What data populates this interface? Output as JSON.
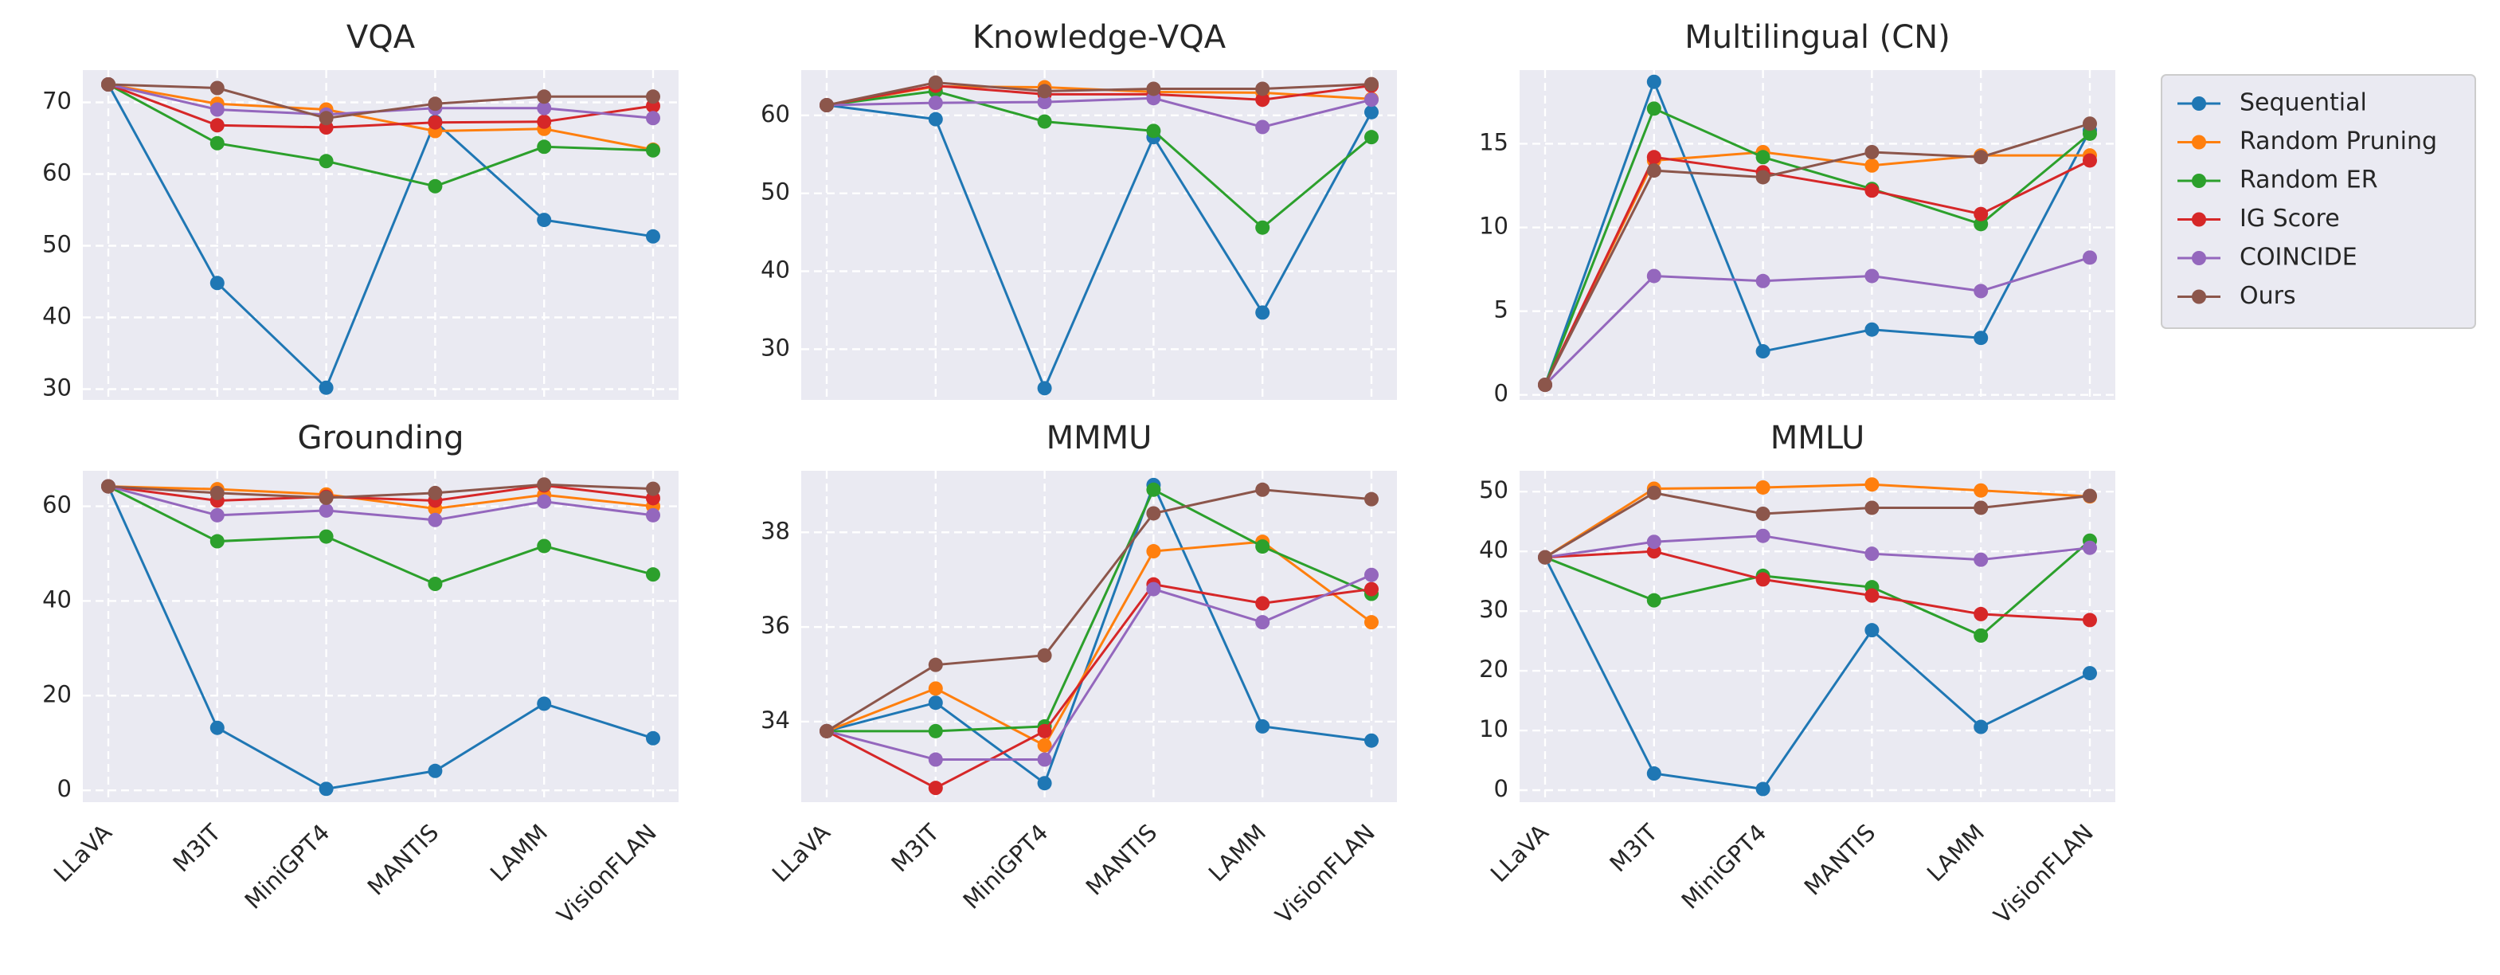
{
  "chart_data": [
    {
      "type": "line",
      "title": "VQA",
      "categories": [
        "LLaVA",
        "M3IT",
        "MiniGPT4",
        "MANTIS",
        "LAMM",
        "VisionFLAN"
      ],
      "ylim": [
        28.5,
        74.5
      ],
      "yticks": [
        30,
        40,
        50,
        60,
        70
      ],
      "series": [
        {
          "name": "Sequential",
          "values": [
            72.5,
            44.8,
            30.2,
            67.3,
            53.6,
            51.3
          ]
        },
        {
          "name": "Random Pruning",
          "values": [
            72.5,
            69.8,
            69.0,
            66.0,
            66.3,
            63.4
          ]
        },
        {
          "name": "Random ER",
          "values": [
            72.5,
            64.3,
            61.8,
            58.3,
            63.8,
            63.3
          ]
        },
        {
          "name": "IG Score",
          "values": [
            72.5,
            66.8,
            66.5,
            67.2,
            67.3,
            69.5
          ]
        },
        {
          "name": "COINCIDE",
          "values": [
            72.5,
            69.0,
            68.3,
            69.2,
            69.2,
            67.8
          ]
        },
        {
          "name": "Ours",
          "values": [
            72.5,
            72.0,
            67.8,
            69.8,
            70.8,
            70.8
          ]
        }
      ]
    },
    {
      "type": "line",
      "title": "Knowledge-VQA",
      "categories": [
        "LLaVA",
        "M3IT",
        "MiniGPT4",
        "MANTIS",
        "LAMM",
        "VisionFLAN"
      ],
      "ylim": [
        23.5,
        65.8
      ],
      "yticks": [
        30,
        40,
        50,
        60
      ],
      "series": [
        {
          "name": "Sequential",
          "values": [
            61.3,
            59.5,
            25.0,
            57.2,
            34.7,
            60.4
          ]
        },
        {
          "name": "Random Pruning",
          "values": [
            61.3,
            63.7,
            63.6,
            63.0,
            62.9,
            62.1
          ]
        },
        {
          "name": "Random ER",
          "values": [
            61.3,
            63.1,
            59.2,
            58.0,
            45.6,
            57.2
          ]
        },
        {
          "name": "IG Score",
          "values": [
            61.3,
            63.8,
            62.7,
            62.7,
            62.0,
            63.8
          ]
        },
        {
          "name": "COINCIDE",
          "values": [
            61.3,
            61.6,
            61.7,
            62.2,
            58.5,
            62.0
          ]
        },
        {
          "name": "Ours",
          "values": [
            61.3,
            64.2,
            63.1,
            63.4,
            63.4,
            64.0
          ]
        }
      ]
    },
    {
      "type": "line",
      "title": "Multilingual (CN)",
      "categories": [
        "LLaVA",
        "M3IT",
        "MiniGPT4",
        "MANTIS",
        "LAMM",
        "VisionFLAN"
      ],
      "ylim": [
        -0.3,
        19.4
      ],
      "yticks": [
        0,
        5,
        10,
        15
      ],
      "series": [
        {
          "name": "Sequential",
          "values": [
            0.6,
            18.7,
            2.6,
            3.9,
            3.4,
            15.8
          ]
        },
        {
          "name": "Random Pruning",
          "values": [
            0.6,
            14.0,
            14.5,
            13.7,
            14.3,
            14.3
          ]
        },
        {
          "name": "Random ER",
          "values": [
            0.6,
            17.1,
            14.2,
            12.3,
            10.2,
            15.6
          ]
        },
        {
          "name": "IG Score",
          "values": [
            0.6,
            14.2,
            13.3,
            12.2,
            10.8,
            14.0
          ]
        },
        {
          "name": "COINCIDE",
          "values": [
            0.6,
            7.1,
            6.8,
            7.1,
            6.2,
            8.2
          ]
        },
        {
          "name": "Ours",
          "values": [
            0.6,
            13.4,
            13.0,
            14.5,
            14.2,
            16.2
          ]
        }
      ]
    },
    {
      "type": "line",
      "title": "Grounding",
      "categories": [
        "LLaVA",
        "M3IT",
        "MiniGPT4",
        "MANTIS",
        "LAMM",
        "VisionFLAN"
      ],
      "ylim": [
        -2.5,
        67.5
      ],
      "yticks": [
        0,
        20,
        40,
        60
      ],
      "series": [
        {
          "name": "Sequential",
          "values": [
            64.2,
            13.2,
            0.3,
            4.1,
            18.3,
            11.0
          ]
        },
        {
          "name": "Random Pruning",
          "values": [
            64.2,
            63.6,
            62.5,
            59.5,
            62.4,
            60.0
          ]
        },
        {
          "name": "Random ER",
          "values": [
            64.2,
            52.6,
            53.6,
            43.6,
            51.6,
            45.6
          ]
        },
        {
          "name": "IG Score",
          "values": [
            64.2,
            61.2,
            62.0,
            61.2,
            64.4,
            61.7
          ]
        },
        {
          "name": "COINCIDE",
          "values": [
            64.2,
            58.1,
            59.1,
            57.1,
            61.0,
            58.1
          ]
        },
        {
          "name": "Ours",
          "values": [
            64.2,
            62.8,
            61.8,
            62.8,
            64.6,
            63.7
          ]
        }
      ]
    },
    {
      "type": "line",
      "title": "MMMU",
      "categories": [
        "LLaVA",
        "M3IT",
        "MiniGPT4",
        "MANTIS",
        "LAMM",
        "VisionFLAN"
      ],
      "ylim": [
        32.3,
        39.3
      ],
      "yticks": [
        34,
        36,
        38
      ],
      "series": [
        {
          "name": "Sequential",
          "values": [
            33.8,
            34.4,
            32.7,
            39.0,
            33.9,
            33.6
          ]
        },
        {
          "name": "Random Pruning",
          "values": [
            33.8,
            34.7,
            33.5,
            37.6,
            37.8,
            36.1
          ]
        },
        {
          "name": "Random ER",
          "values": [
            33.8,
            33.8,
            33.9,
            38.9,
            37.7,
            36.7
          ]
        },
        {
          "name": "IG Score",
          "values": [
            33.8,
            32.6,
            33.8,
            36.9,
            36.5,
            36.8
          ]
        },
        {
          "name": "COINCIDE",
          "values": [
            33.8,
            33.2,
            33.2,
            36.8,
            36.1,
            37.1
          ]
        },
        {
          "name": "Ours",
          "values": [
            33.8,
            35.2,
            35.4,
            38.4,
            38.9,
            38.7
          ]
        }
      ]
    },
    {
      "type": "line",
      "title": "MMLU",
      "categories": [
        "LLaVA",
        "M3IT",
        "MiniGPT4",
        "MANTIS",
        "LAMM",
        "VisionFLAN"
      ],
      "ylim": [
        -2.0,
        53.5
      ],
      "yticks": [
        0,
        10,
        20,
        30,
        40,
        50
      ],
      "series": [
        {
          "name": "Sequential",
          "values": [
            39.0,
            2.8,
            0.2,
            26.8,
            10.6,
            19.6
          ]
        },
        {
          "name": "Random Pruning",
          "values": [
            39.0,
            50.5,
            50.7,
            51.2,
            50.2,
            49.2
          ]
        },
        {
          "name": "Random ER",
          "values": [
            39.0,
            31.8,
            35.9,
            34.0,
            25.9,
            41.8
          ]
        },
        {
          "name": "IG Score",
          "values": [
            39.0,
            40.0,
            35.3,
            32.6,
            29.5,
            28.5
          ]
        },
        {
          "name": "COINCIDE",
          "values": [
            39.0,
            41.6,
            42.6,
            39.6,
            38.6,
            40.6
          ]
        },
        {
          "name": "Ours",
          "values": [
            39.0,
            49.8,
            46.3,
            47.3,
            47.3,
            49.3
          ]
        }
      ]
    }
  ],
  "legend": {
    "entries": [
      "Sequential",
      "Random Pruning",
      "Random ER",
      "IG Score",
      "COINCIDE",
      "Ours"
    ],
    "colors": [
      "#1f77b4",
      "#ff7f0e",
      "#2ca02c",
      "#d62728",
      "#9467bd",
      "#8c564b"
    ]
  }
}
